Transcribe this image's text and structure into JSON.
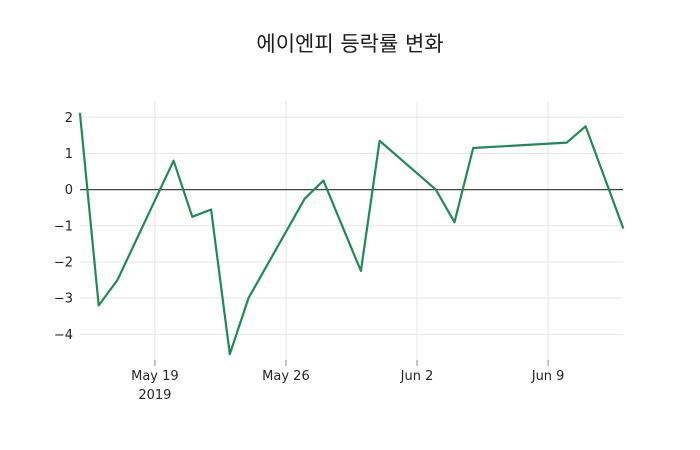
{
  "figure": {
    "background": "#ffffff"
  },
  "chart_data": {
    "type": "line",
    "title": "에이엔피 등락률 변화",
    "xlabel": "",
    "ylabel": "",
    "grid": true,
    "legend": "none",
    "zero_line": true,
    "colors": {
      "line": "#1e8b57",
      "grid": "#e7e7e7",
      "zero_line": "#444444",
      "tick_mark": "#8c8c8c",
      "text": "#262626"
    },
    "x": [
      "2019-05-15",
      "2019-05-16",
      "2019-05-17",
      "2019-05-20",
      "2019-05-21",
      "2019-05-22",
      "2019-05-23",
      "2019-05-24",
      "2019-05-27",
      "2019-05-28",
      "2019-05-30",
      "2019-05-31",
      "2019-06-03",
      "2019-06-04",
      "2019-06-05",
      "2019-06-10",
      "2019-06-11",
      "2019-06-13"
    ],
    "x_day_offsets": [
      0,
      1,
      2,
      5,
      6,
      7,
      8,
      9,
      12,
      13,
      15,
      16,
      19,
      20,
      21,
      26,
      27,
      29
    ],
    "series": [
      {
        "values": [
          2.1,
          -3.2,
          -2.5,
          0.8,
          -0.75,
          -0.55,
          -4.55,
          -3.0,
          -0.25,
          0.25,
          -2.25,
          1.35,
          0.0,
          -0.9,
          1.15,
          1.3,
          1.75,
          -1.05
        ]
      }
    ],
    "x_ticks": [
      {
        "lines": [
          "May 19",
          "2019"
        ],
        "day": 4
      },
      {
        "lines": [
          "May 26"
        ],
        "day": 11
      },
      {
        "lines": [
          "Jun 2"
        ],
        "day": 18
      },
      {
        "lines": [
          "Jun 9"
        ],
        "day": 25
      }
    ],
    "y_ticks": [
      2,
      1,
      0,
      -1,
      -2,
      -3,
      -4
    ],
    "ylim": [
      -4.71,
      2.45
    ],
    "xlim_days": [
      0,
      29
    ]
  }
}
